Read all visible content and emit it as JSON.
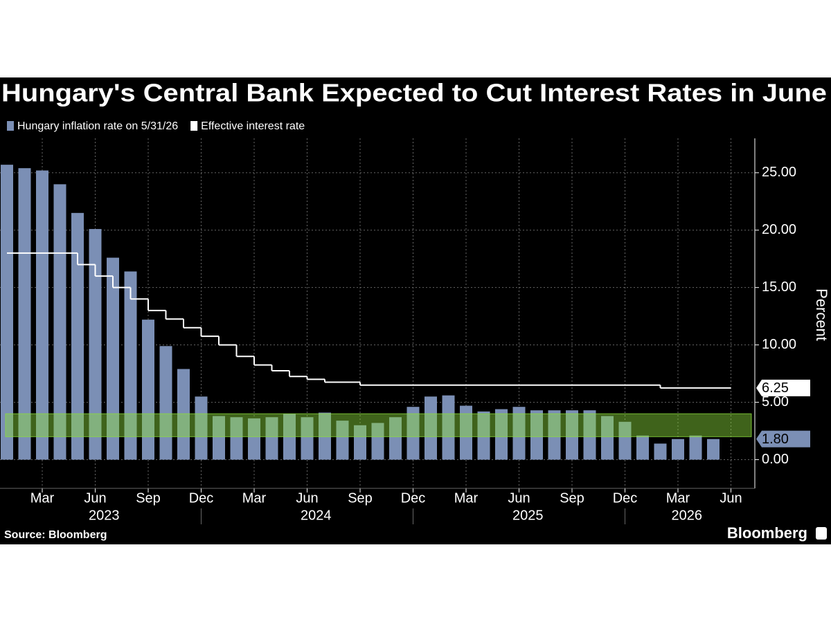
{
  "chart_data": {
    "type": "bar-line",
    "title": "Hungary's Central Bank Expected to Cut Interest Rates in June",
    "x": [
      "2023-01",
      "2023-02",
      "2023-03",
      "2023-04",
      "2023-05",
      "2023-06",
      "2023-07",
      "2023-08",
      "2023-09",
      "2023-10",
      "2023-11",
      "2023-12",
      "2024-01",
      "2024-02",
      "2024-03",
      "2024-04",
      "2024-05",
      "2024-06",
      "2024-07",
      "2024-08",
      "2024-09",
      "2024-10",
      "2024-11",
      "2024-12",
      "2025-01",
      "2025-02",
      "2025-03",
      "2025-04",
      "2025-05",
      "2025-06",
      "2025-07",
      "2025-08",
      "2025-09",
      "2025-10",
      "2025-11",
      "2025-12",
      "2026-01",
      "2026-02",
      "2026-03",
      "2026-04",
      "2026-05",
      "2026-06"
    ],
    "series": [
      {
        "name": "Hungary inflation rate on 5/31/26",
        "type": "bar",
        "color": "#7b8fb5",
        "end_label": "1.80",
        "values": [
          25.7,
          25.4,
          25.2,
          24.0,
          21.5,
          20.1,
          17.6,
          16.4,
          12.2,
          9.9,
          7.9,
          5.5,
          3.8,
          3.7,
          3.6,
          3.7,
          4.0,
          3.7,
          4.1,
          3.4,
          3.0,
          3.2,
          3.7,
          4.6,
          5.5,
          5.6,
          4.7,
          4.2,
          4.4,
          4.6,
          4.3,
          4.3,
          4.3,
          4.3,
          3.8,
          3.3,
          2.1,
          1.4,
          1.8,
          2.1,
          1.8,
          null
        ]
      },
      {
        "name": "Effective interest rate",
        "type": "step",
        "color": "#ffffff",
        "end_label": "6.25",
        "values": [
          18,
          18,
          18,
          18,
          17,
          16,
          15,
          14,
          13,
          12.25,
          11.5,
          10.75,
          10,
          9,
          8.25,
          7.75,
          7.25,
          7,
          6.75,
          6.75,
          6.5,
          6.5,
          6.5,
          6.5,
          6.5,
          6.5,
          6.5,
          6.5,
          6.5,
          6.5,
          6.5,
          6.5,
          6.5,
          6.5,
          6.5,
          6.5,
          6.5,
          6.25,
          6.25,
          6.25,
          6.25,
          6.25
        ]
      }
    ],
    "target_band": [
      2,
      4
    ],
    "band_color": "rgba(140,220,60,0.45)",
    "ylim": [
      -2.5,
      28
    ],
    "yticks": [
      {
        "value": 0,
        "label": "0.00"
      },
      {
        "value": 5,
        "label": "5.00"
      },
      {
        "value": 10,
        "label": "10.00"
      },
      {
        "value": 15,
        "label": "15.00"
      },
      {
        "value": 20,
        "label": "20.00"
      },
      {
        "value": 25,
        "label": "25.00"
      }
    ],
    "y_label": "Percent",
    "xticks": [
      {
        "value": "2023-03",
        "label": "Mar"
      },
      {
        "value": "2023-06",
        "label": "Jun"
      },
      {
        "value": "2023-09",
        "label": "Sep"
      },
      {
        "value": "2023-12",
        "label": "Dec"
      },
      {
        "value": "2024-03",
        "label": "Mar"
      },
      {
        "value": "2024-06",
        "label": "Jun"
      },
      {
        "value": "2024-09",
        "label": "Sep"
      },
      {
        "value": "2024-12",
        "label": "Dec"
      },
      {
        "value": "2025-03",
        "label": "Mar"
      },
      {
        "value": "2025-06",
        "label": "Jun"
      },
      {
        "value": "2025-09",
        "label": "Sep"
      },
      {
        "value": "2025-12",
        "label": "Dec"
      },
      {
        "value": "2026-03",
        "label": "Mar"
      },
      {
        "value": "2026-06",
        "label": "Jun"
      }
    ],
    "year_labels": [
      "2023",
      "2024",
      "2025",
      "2026"
    ],
    "grid": true,
    "source": "Source: Bloomberg",
    "brand": "Bloomberg"
  }
}
